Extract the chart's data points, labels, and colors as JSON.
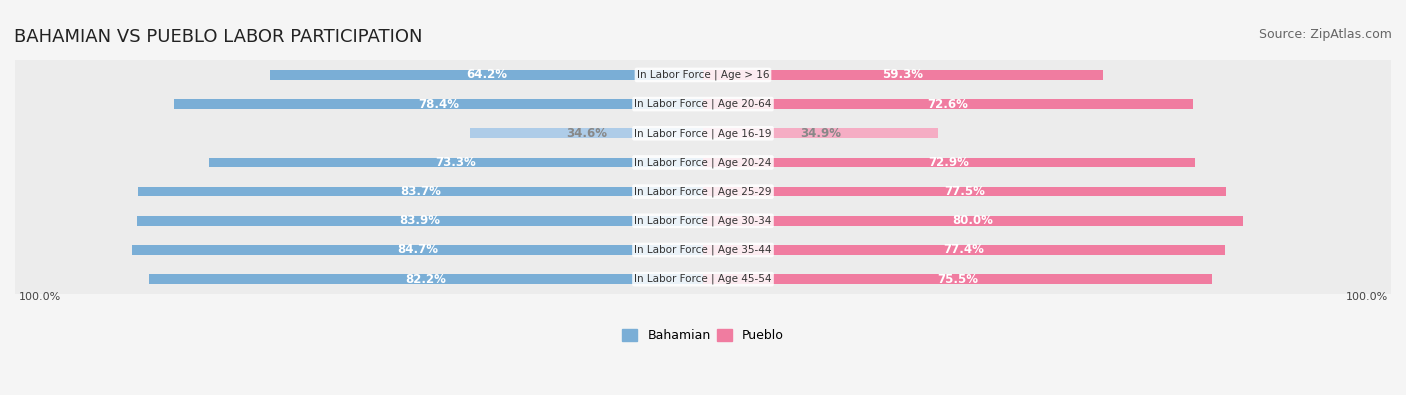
{
  "title": "BAHAMIAN VS PUEBLO LABOR PARTICIPATION",
  "source": "Source: ZipAtlas.com",
  "categories": [
    "In Labor Force | Age > 16",
    "In Labor Force | Age 20-64",
    "In Labor Force | Age 16-19",
    "In Labor Force | Age 20-24",
    "In Labor Force | Age 25-29",
    "In Labor Force | Age 30-34",
    "In Labor Force | Age 35-44",
    "In Labor Force | Age 45-54"
  ],
  "bahamian_values": [
    64.2,
    78.4,
    34.6,
    73.3,
    83.7,
    83.9,
    84.7,
    82.2
  ],
  "pueblo_values": [
    59.3,
    72.6,
    34.9,
    72.9,
    77.5,
    80.0,
    77.4,
    75.5
  ],
  "bahamian_color": "#7aaed6",
  "bahamian_color_light": "#aecce8",
  "pueblo_color": "#f07ca0",
  "pueblo_color_light": "#f5adc4",
  "label_color_dark": "#5a5a5a",
  "label_color_white": "#ffffff",
  "bg_color": "#f5f5f5",
  "row_bg_color": "#ececec",
  "max_value": 100.0,
  "title_fontsize": 13,
  "source_fontsize": 9,
  "bar_label_fontsize": 8.5,
  "category_fontsize": 7.5,
  "legend_fontsize": 9,
  "footer_fontsize": 8
}
